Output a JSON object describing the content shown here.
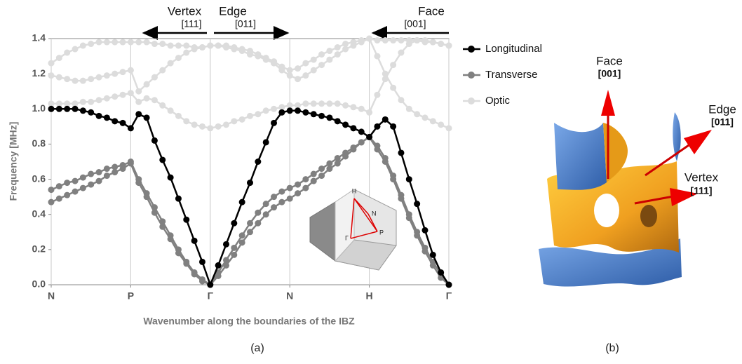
{
  "chart_data": {
    "type": "line",
    "xlabel": "Wavenumber along the boundaries of the IBZ",
    "ylabel": "Frequency [MHz]",
    "xlim": [
      0,
      5
    ],
    "ylim": [
      0,
      1.4
    ],
    "xticks": [
      {
        "value": 0,
        "label": "N"
      },
      {
        "value": 1,
        "label": "P"
      },
      {
        "value": 2,
        "label": "Γ"
      },
      {
        "value": 3,
        "label": "N"
      },
      {
        "value": 4,
        "label": "H"
      },
      {
        "value": 5,
        "label": "Γ"
      }
    ],
    "yticks": [
      {
        "value": 0,
        "label": "0.0"
      },
      0.2,
      0.4,
      0.6,
      0.8,
      {
        "value": 1,
        "label": "1.0"
      },
      1.2,
      1.4
    ],
    "grid": "x",
    "legend": "right",
    "x": [
      0,
      0.1,
      0.2,
      0.3,
      0.4,
      0.5,
      0.6,
      0.7,
      0.8,
      0.9,
      1,
      1.1,
      1.2,
      1.3,
      1.4,
      1.5,
      1.6,
      1.7,
      1.8,
      1.9,
      2,
      2.1,
      2.2,
      2.3,
      2.4,
      2.5,
      2.6,
      2.7,
      2.8,
      2.9,
      3,
      3.1,
      3.2,
      3.3,
      3.4,
      3.5,
      3.6,
      3.7,
      3.8,
      3.9,
      4,
      4.1,
      4.2,
      4.3,
      4.4,
      4.5,
      4.6,
      4.7,
      4.8,
      4.9,
      5
    ],
    "series": [
      {
        "name": "Optic",
        "color": "#dcdcdc",
        "values": [
          1.26,
          1.29,
          1.32,
          1.34,
          1.36,
          1.37,
          1.38,
          1.38,
          1.38,
          1.38,
          1.38,
          1.38,
          1.38,
          1.37,
          1.37,
          1.36,
          1.36,
          1.36,
          1.35,
          1.35,
          1.36,
          1.36,
          1.36,
          1.35,
          1.34,
          1.33,
          1.31,
          1.29,
          1.27,
          1.24,
          1.22,
          1.23,
          1.26,
          1.28,
          1.31,
          1.33,
          1.35,
          1.37,
          1.38,
          1.39,
          1.4,
          1.39,
          1.39,
          1.39,
          1.39,
          1.39,
          1.39,
          1.38,
          1.38,
          1.37,
          1.36
        ]
      },
      {
        "color": "#dcdcdc",
        "values": [
          1.19,
          1.18,
          1.17,
          1.16,
          1.16,
          1.17,
          1.18,
          1.19,
          1.2,
          1.21,
          1.22,
          1.1,
          1.14,
          1.18,
          1.22,
          1.26,
          1.29,
          1.32,
          1.34,
          1.35,
          1.36,
          1.36,
          1.35,
          1.34,
          1.33,
          1.31,
          1.3,
          1.28,
          1.26,
          1.22,
          1.19,
          1.17,
          1.19,
          1.22,
          1.25,
          1.28,
          1.31,
          1.34,
          1.36,
          1.38,
          1.4,
          1.3,
          1.2,
          1.12,
          1.05,
          1,
          0.97,
          0.95,
          0.93,
          0.91,
          0.89
        ]
      },
      {
        "color": "#dcdcdc",
        "values": [
          1.03,
          1.03,
          1.03,
          1.03,
          1.04,
          1.04,
          1.05,
          1.06,
          1.07,
          1.08,
          1.09,
          1.04,
          1.06,
          1.05,
          1.02,
          0.99,
          0.96,
          0.93,
          0.91,
          0.9,
          0.89,
          0.9,
          0.91,
          0.93,
          0.94,
          0.96,
          0.97,
          0.99,
          1,
          1.01,
          1.02,
          1.02,
          1.03,
          1.03,
          1.03,
          1.03,
          1.03,
          1.02,
          1.01,
          1,
          0.98,
          1.08,
          1.17,
          1.25,
          1.32,
          1.37,
          1.39,
          1.39,
          1.38,
          1.37,
          1.36
        ]
      },
      {
        "name": "Transverse",
        "color": "#808080",
        "values": [
          0.54,
          0.56,
          0.58,
          0.59,
          0.61,
          0.63,
          0.64,
          0.66,
          0.67,
          0.68,
          0.7,
          0.6,
          0.52,
          0.44,
          0.36,
          0.28,
          0.2,
          0.13,
          0.07,
          0.03,
          0,
          0.07,
          0.14,
          0.21,
          0.28,
          0.35,
          0.41,
          0.46,
          0.5,
          0.53,
          0.55,
          0.57,
          0.6,
          0.63,
          0.66,
          0.69,
          0.72,
          0.75,
          0.78,
          0.81,
          0.84,
          0.79,
          0.72,
          0.62,
          0.51,
          0.4,
          0.3,
          0.21,
          0.13,
          0.06,
          0
        ]
      },
      {
        "color": "#808080",
        "values": [
          0.47,
          0.49,
          0.51,
          0.53,
          0.55,
          0.57,
          0.59,
          0.62,
          0.64,
          0.66,
          0.69,
          0.58,
          0.5,
          0.41,
          0.33,
          0.26,
          0.18,
          0.12,
          0.06,
          0.02,
          0,
          0.05,
          0.11,
          0.17,
          0.24,
          0.3,
          0.35,
          0.4,
          0.44,
          0.47,
          0.49,
          0.52,
          0.55,
          0.59,
          0.62,
          0.66,
          0.69,
          0.73,
          0.77,
          0.81,
          0.84,
          0.77,
          0.7,
          0.6,
          0.49,
          0.38,
          0.28,
          0.19,
          0.11,
          0.04,
          0
        ]
      },
      {
        "name": "Longitudinal",
        "color": "#000000",
        "values": [
          1,
          1,
          1,
          1,
          0.99,
          0.98,
          0.96,
          0.95,
          0.93,
          0.92,
          0.89,
          0.97,
          0.95,
          0.82,
          0.71,
          0.61,
          0.49,
          0.37,
          0.25,
          0.13,
          0,
          0.11,
          0.23,
          0.35,
          0.47,
          0.58,
          0.7,
          0.81,
          0.92,
          0.98,
          0.99,
          0.99,
          0.98,
          0.97,
          0.96,
          0.95,
          0.93,
          0.91,
          0.89,
          0.87,
          0.84,
          0.9,
          0.94,
          0.9,
          0.75,
          0.6,
          0.46,
          0.31,
          0.17,
          0.07,
          0
        ]
      }
    ],
    "legend_order": [
      5,
      3,
      0
    ],
    "annotations": [
      {
        "text": "Vertex",
        "sub": "[111]"
      },
      {
        "text": "Edge",
        "sub": "[011]"
      },
      {
        "text": "Face",
        "sub": "[001]"
      }
    ],
    "inset_labels": [
      "H",
      "N",
      "P",
      "Γ"
    ]
  },
  "figure_b": {
    "labels": [
      {
        "text": "Face",
        "sub": "[001]"
      },
      {
        "text": "Edge",
        "sub": "[011]"
      },
      {
        "text": "Vertex",
        "sub": "[111]"
      }
    ]
  },
  "panel_labels": [
    "(a)",
    "(b)"
  ]
}
